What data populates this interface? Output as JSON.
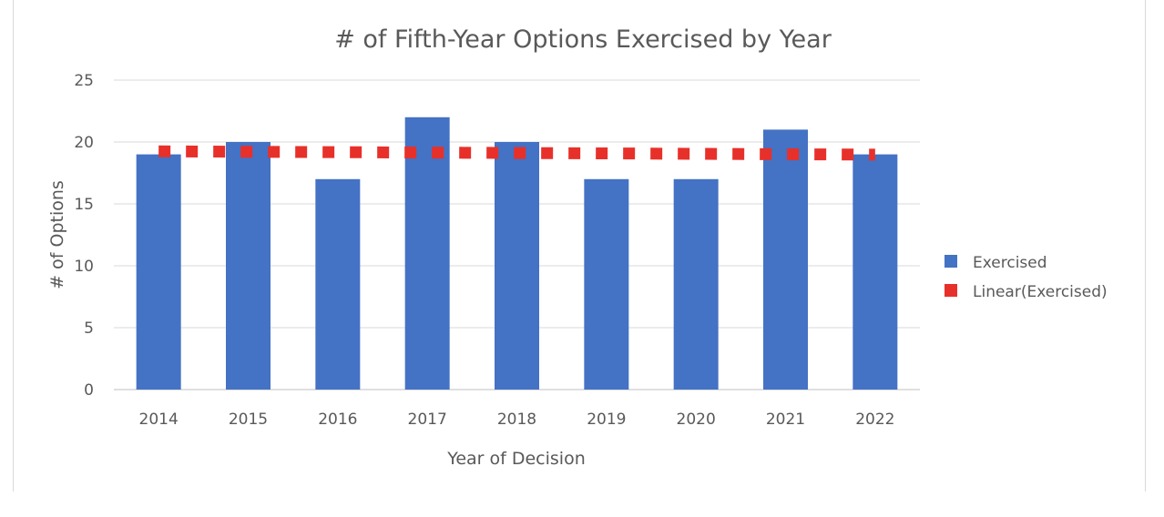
{
  "chart_data": {
    "type": "bar",
    "title": "# of Fifth-Year Options Exercised by Year",
    "xlabel": "Year of Decision",
    "ylabel": "# of Options",
    "categories": [
      "2014",
      "2015",
      "2016",
      "2017",
      "2018",
      "2019",
      "2020",
      "2021",
      "2022"
    ],
    "series": [
      {
        "name": "Exercised",
        "values": [
          19,
          20,
          17,
          22,
          20,
          17,
          17,
          21,
          19
        ],
        "color": "#4472c4"
      }
    ],
    "trendline": {
      "name": "Linear(Exercised)",
      "type": "linear",
      "of_series": "Exercised",
      "color": "#e8302a",
      "style": "square-dotted"
    },
    "ylim": [
      0,
      25
    ],
    "yticks": [
      0,
      5,
      10,
      15,
      20,
      25
    ],
    "grid": true,
    "legend_position": "right"
  }
}
